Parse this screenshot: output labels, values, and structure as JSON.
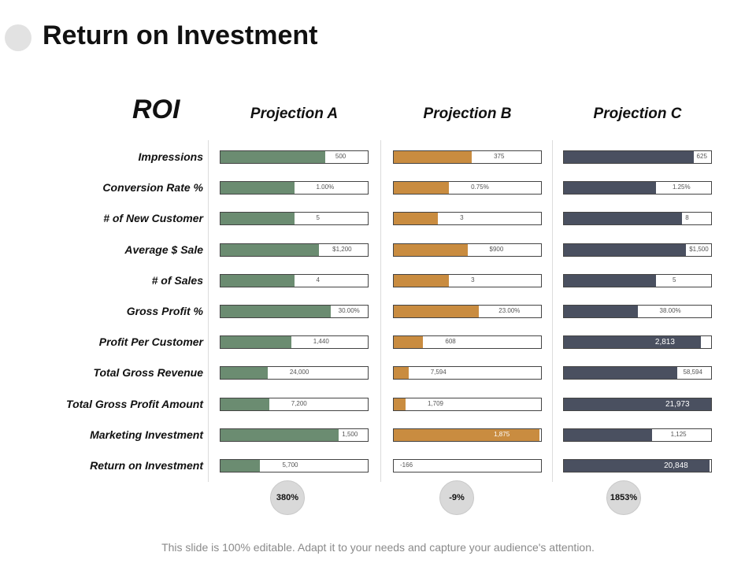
{
  "slide": {
    "title": "Return on Investment",
    "footer": "This slide is 100% editable. Adapt it to your needs and capture your audience's attention."
  },
  "chart_data": {
    "type": "bar",
    "title": "ROI",
    "metrics": [
      "Impressions",
      "Conversion Rate %",
      "# of New Customer",
      "Average $ Sale",
      "# of Sales",
      "Gross Profit %",
      "Profit Per Customer",
      "Total Gross Revenue",
      "Total Gross Profit Amount",
      "Marketing Investment",
      "Return on Investment"
    ],
    "series": [
      {
        "name": "Projection A",
        "color": "#6b8c71",
        "values": [
          500,
          1.0,
          5,
          1200,
          4,
          30.0,
          1440,
          24000,
          7200,
          1500,
          5700
        ],
        "labels": [
          "500",
          "1.00%",
          "5",
          "$1,200",
          "4",
          "30.00%",
          "1,440",
          "24,000",
          "7,200",
          "1,500",
          "5,700"
        ],
        "fill_fractions": [
          0.71,
          0.5,
          0.5,
          0.67,
          0.5,
          0.75,
          0.48,
          0.32,
          0.33,
          0.8,
          0.27
        ],
        "roi": "380%"
      },
      {
        "name": "Projection B",
        "color": "#c98c40",
        "values": [
          375,
          0.75,
          3,
          900,
          3,
          23.0,
          608,
          7594,
          1709,
          1875,
          -166
        ],
        "labels": [
          "375",
          "0.75%",
          "3",
          "$900",
          "3",
          "23.00%",
          "608",
          "7,594",
          "1,709",
          "1,875",
          "-166"
        ],
        "fill_fractions": [
          0.53,
          0.375,
          0.3,
          0.5,
          0.375,
          0.575,
          0.2,
          0.1,
          0.08,
          0.99,
          0.0
        ],
        "roi": "-9%"
      },
      {
        "name": "Projection C",
        "color": "#4a5060",
        "values": [
          625,
          1.25,
          8,
          1500,
          5,
          38.0,
          2813,
          58594,
          21973,
          1125,
          20848
        ],
        "labels": [
          "625",
          "1.25%",
          "8",
          "$1,500",
          "5",
          "38.00%",
          "2,813",
          "58,594",
          "21,973",
          "1,125",
          "20,848"
        ],
        "fill_fractions": [
          0.88,
          0.625,
          0.8,
          0.83,
          0.625,
          0.5,
          0.93,
          0.77,
          1.0,
          0.6,
          0.99
        ],
        "roi": "1853%"
      }
    ]
  }
}
